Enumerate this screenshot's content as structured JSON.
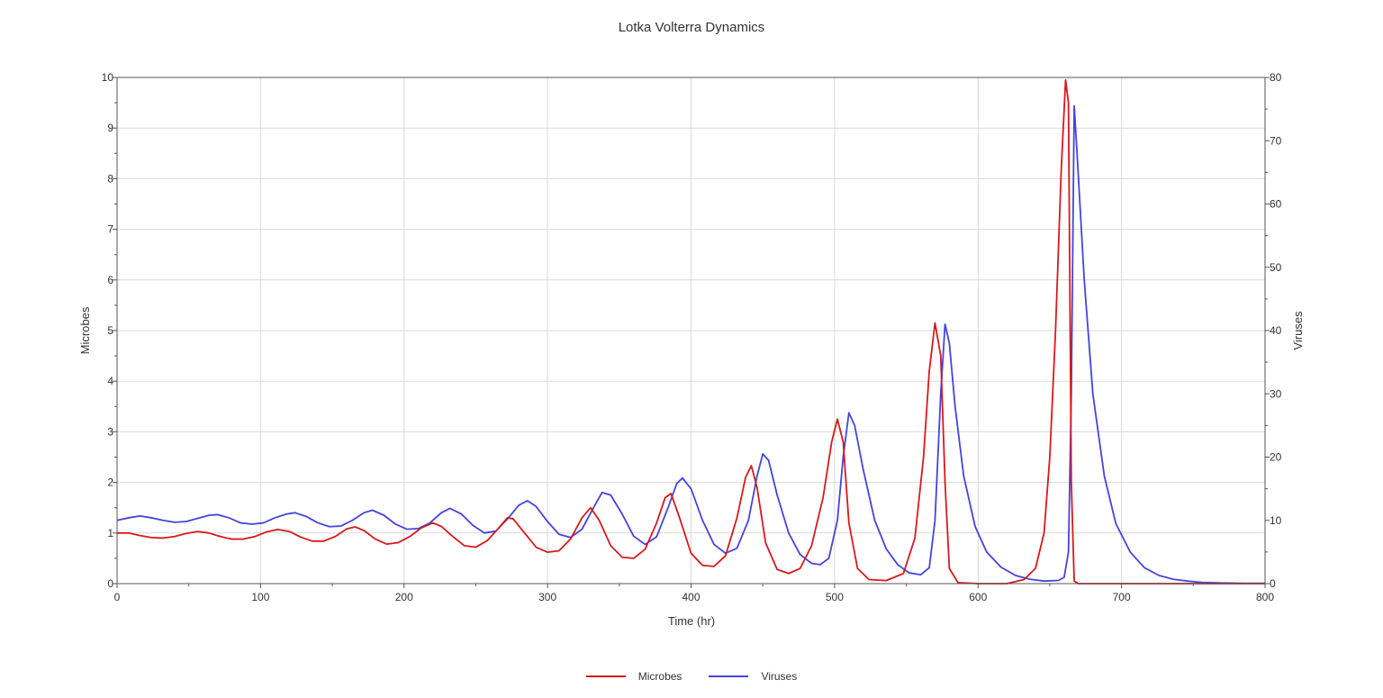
{
  "chart_data": {
    "type": "line",
    "title": "Lotka Volterra Dynamics",
    "xlabel": "Time (hr)",
    "ylabel_left": "Microbes",
    "ylabel_right": "Viruses",
    "xlim": [
      0,
      800
    ],
    "ylim_left": [
      0,
      10
    ],
    "ylim_right": [
      0,
      80
    ],
    "x_ticks": [
      "0",
      "100",
      "200",
      "300",
      "400",
      "500",
      "600",
      "700",
      "800"
    ],
    "y_left_ticks": [
      "0",
      "1",
      "2",
      "3",
      "4",
      "5",
      "6",
      "7",
      "8",
      "9",
      "10"
    ],
    "y_right_ticks": [
      "0",
      "10",
      "20",
      "30",
      "40",
      "50",
      "60",
      "70",
      "80"
    ],
    "grid": true,
    "legend_position": "bottom-center",
    "series": [
      {
        "name": "Microbes",
        "axis": "left",
        "color": "#d7191c",
        "points": [
          [
            0,
            1.0
          ],
          [
            8,
            1.0
          ],
          [
            16,
            0.95
          ],
          [
            24,
            0.91
          ],
          [
            32,
            0.9
          ],
          [
            40,
            0.93
          ],
          [
            48,
            0.99
          ],
          [
            56,
            1.03
          ],
          [
            64,
            1.0
          ],
          [
            72,
            0.93
          ],
          [
            80,
            0.88
          ],
          [
            88,
            0.88
          ],
          [
            96,
            0.93
          ],
          [
            104,
            1.02
          ],
          [
            112,
            1.07
          ],
          [
            120,
            1.03
          ],
          [
            128,
            0.92
          ],
          [
            136,
            0.84
          ],
          [
            144,
            0.84
          ],
          [
            152,
            0.93
          ],
          [
            160,
            1.08
          ],
          [
            166,
            1.12
          ],
          [
            172,
            1.05
          ],
          [
            180,
            0.88
          ],
          [
            188,
            0.78
          ],
          [
            196,
            0.81
          ],
          [
            204,
            0.93
          ],
          [
            212,
            1.1
          ],
          [
            220,
            1.2
          ],
          [
            226,
            1.13
          ],
          [
            234,
            0.93
          ],
          [
            242,
            0.75
          ],
          [
            250,
            0.72
          ],
          [
            258,
            0.85
          ],
          [
            266,
            1.1
          ],
          [
            272,
            1.3
          ],
          [
            276,
            1.28
          ],
          [
            284,
            1.0
          ],
          [
            292,
            0.72
          ],
          [
            300,
            0.62
          ],
          [
            308,
            0.65
          ],
          [
            316,
            0.88
          ],
          [
            324,
            1.3
          ],
          [
            330,
            1.5
          ],
          [
            336,
            1.25
          ],
          [
            344,
            0.75
          ],
          [
            352,
            0.52
          ],
          [
            360,
            0.5
          ],
          [
            368,
            0.68
          ],
          [
            376,
            1.2
          ],
          [
            382,
            1.7
          ],
          [
            386,
            1.78
          ],
          [
            392,
            1.3
          ],
          [
            400,
            0.6
          ],
          [
            408,
            0.36
          ],
          [
            416,
            0.34
          ],
          [
            424,
            0.55
          ],
          [
            432,
            1.3
          ],
          [
            438,
            2.1
          ],
          [
            442,
            2.33
          ],
          [
            446,
            1.9
          ],
          [
            452,
            0.8
          ],
          [
            460,
            0.28
          ],
          [
            468,
            0.2
          ],
          [
            476,
            0.3
          ],
          [
            484,
            0.75
          ],
          [
            492,
            1.7
          ],
          [
            498,
            2.8
          ],
          [
            502,
            3.25
          ],
          [
            506,
            2.8
          ],
          [
            510,
            1.2
          ],
          [
            516,
            0.3
          ],
          [
            524,
            0.08
          ],
          [
            536,
            0.06
          ],
          [
            548,
            0.2
          ],
          [
            556,
            0.9
          ],
          [
            562,
            2.5
          ],
          [
            566,
            4.2
          ],
          [
            570,
            5.15
          ],
          [
            574,
            4.5
          ],
          [
            577,
            2.0
          ],
          [
            580,
            0.3
          ],
          [
            586,
            0.02
          ],
          [
            600,
            0.0
          ],
          [
            620,
            0.0
          ],
          [
            632,
            0.08
          ],
          [
            640,
            0.3
          ],
          [
            646,
            1.0
          ],
          [
            650,
            2.5
          ],
          [
            654,
            5.0
          ],
          [
            658,
            8.2
          ],
          [
            661,
            9.95
          ],
          [
            663,
            9.5
          ],
          [
            665,
            2.0
          ],
          [
            667,
            0.05
          ],
          [
            670,
            0.0
          ],
          [
            700,
            0.0
          ],
          [
            750,
            0.0
          ],
          [
            800,
            0.0
          ]
        ]
      },
      {
        "name": "Viruses",
        "axis": "right",
        "color": "#4444dd",
        "points": [
          [
            0,
            10.0
          ],
          [
            8,
            10.4
          ],
          [
            16,
            10.7
          ],
          [
            24,
            10.4
          ],
          [
            32,
            10.0
          ],
          [
            40,
            9.7
          ],
          [
            48,
            9.8
          ],
          [
            56,
            10.3
          ],
          [
            64,
            10.8
          ],
          [
            70,
            10.9
          ],
          [
            78,
            10.4
          ],
          [
            86,
            9.6
          ],
          [
            94,
            9.4
          ],
          [
            102,
            9.6
          ],
          [
            110,
            10.4
          ],
          [
            118,
            11.0
          ],
          [
            124,
            11.2
          ],
          [
            132,
            10.6
          ],
          [
            140,
            9.6
          ],
          [
            148,
            9.0
          ],
          [
            156,
            9.1
          ],
          [
            164,
            10.0
          ],
          [
            172,
            11.2
          ],
          [
            178,
            11.6
          ],
          [
            186,
            10.8
          ],
          [
            194,
            9.4
          ],
          [
            202,
            8.6
          ],
          [
            210,
            8.7
          ],
          [
            218,
            9.6
          ],
          [
            226,
            11.2
          ],
          [
            232,
            11.9
          ],
          [
            240,
            11.0
          ],
          [
            248,
            9.2
          ],
          [
            256,
            8.0
          ],
          [
            264,
            8.3
          ],
          [
            272,
            10.2
          ],
          [
            280,
            12.4
          ],
          [
            286,
            13.1
          ],
          [
            292,
            12.2
          ],
          [
            300,
            9.8
          ],
          [
            308,
            7.8
          ],
          [
            316,
            7.3
          ],
          [
            324,
            8.6
          ],
          [
            332,
            12.0
          ],
          [
            338,
            14.4
          ],
          [
            344,
            14.0
          ],
          [
            352,
            11.0
          ],
          [
            360,
            7.5
          ],
          [
            368,
            6.2
          ],
          [
            376,
            7.4
          ],
          [
            384,
            12.0
          ],
          [
            390,
            15.8
          ],
          [
            394,
            16.7
          ],
          [
            400,
            15.0
          ],
          [
            408,
            10.0
          ],
          [
            416,
            6.2
          ],
          [
            424,
            4.8
          ],
          [
            432,
            5.6
          ],
          [
            440,
            10.0
          ],
          [
            446,
            17.0
          ],
          [
            450,
            20.5
          ],
          [
            454,
            19.5
          ],
          [
            460,
            14.0
          ],
          [
            468,
            8.0
          ],
          [
            476,
            4.6
          ],
          [
            484,
            3.2
          ],
          [
            490,
            3.0
          ],
          [
            496,
            4.0
          ],
          [
            502,
            10.0
          ],
          [
            506,
            20.0
          ],
          [
            510,
            27.0
          ],
          [
            514,
            25.0
          ],
          [
            520,
            18.0
          ],
          [
            528,
            10.0
          ],
          [
            536,
            5.5
          ],
          [
            544,
            3.0
          ],
          [
            552,
            1.7
          ],
          [
            560,
            1.4
          ],
          [
            566,
            2.5
          ],
          [
            570,
            10.0
          ],
          [
            574,
            30.0
          ],
          [
            577,
            41.0
          ],
          [
            580,
            38.0
          ],
          [
            584,
            28.0
          ],
          [
            590,
            17.0
          ],
          [
            598,
            9.0
          ],
          [
            606,
            5.0
          ],
          [
            616,
            2.6
          ],
          [
            626,
            1.3
          ],
          [
            636,
            0.7
          ],
          [
            646,
            0.4
          ],
          [
            656,
            0.5
          ],
          [
            660,
            1.0
          ],
          [
            663,
            5.0
          ],
          [
            665,
            30.0
          ],
          [
            667,
            75.5
          ],
          [
            669,
            68.0
          ],
          [
            674,
            48.0
          ],
          [
            680,
            30.0
          ],
          [
            688,
            17.0
          ],
          [
            696,
            9.5
          ],
          [
            706,
            5.0
          ],
          [
            716,
            2.5
          ],
          [
            726,
            1.3
          ],
          [
            736,
            0.7
          ],
          [
            746,
            0.4
          ],
          [
            756,
            0.2
          ],
          [
            770,
            0.1
          ],
          [
            785,
            0.05
          ],
          [
            800,
            0.05
          ]
        ]
      }
    ]
  }
}
